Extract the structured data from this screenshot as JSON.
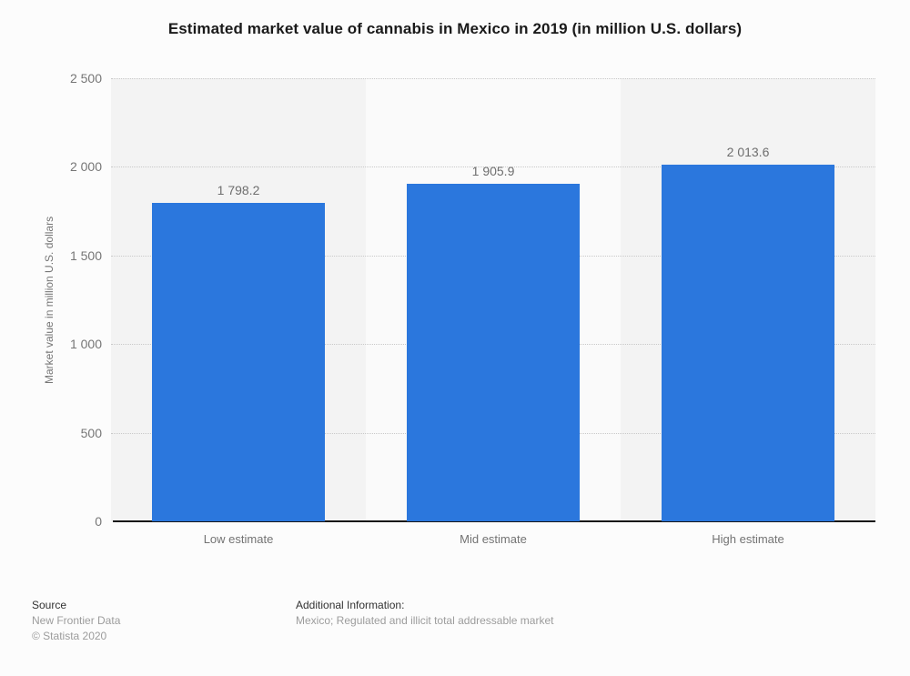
{
  "title": "Estimated market value of cannabis in Mexico in 2019 (in million U.S. dollars)",
  "chart_data": {
    "type": "bar",
    "title": "Estimated market value of cannabis in Mexico in 2019 (in million U.S. dollars)",
    "categories": [
      "Low estimate",
      "Mid estimate",
      "High estimate"
    ],
    "values": [
      1798.2,
      1905.9,
      2013.6
    ],
    "value_labels": [
      "1 798.2",
      "1 905.9",
      "2 013.6"
    ],
    "xlabel": "",
    "ylabel": "Market value in million U.S. dollars",
    "ylim": [
      0,
      2500
    ],
    "yticks": [
      0,
      500,
      1000,
      1500,
      2000,
      2500
    ],
    "ytick_labels": [
      "0",
      "500",
      "1 000",
      "1 500",
      "2 000",
      "2 500"
    ],
    "grid": true,
    "gridline_style": "dotted",
    "legend": false,
    "bar_color": "#2b77dd",
    "stripe_colors": [
      "#f3f3f3",
      "#fafafa",
      "#f3f3f3"
    ]
  },
  "footer": {
    "source_label": "Source",
    "source_lines": [
      "New Frontier Data",
      "© Statista 2020"
    ],
    "additional_label": "Additional Information:",
    "additional_text": "Mexico; Regulated and illicit total addressable market"
  }
}
